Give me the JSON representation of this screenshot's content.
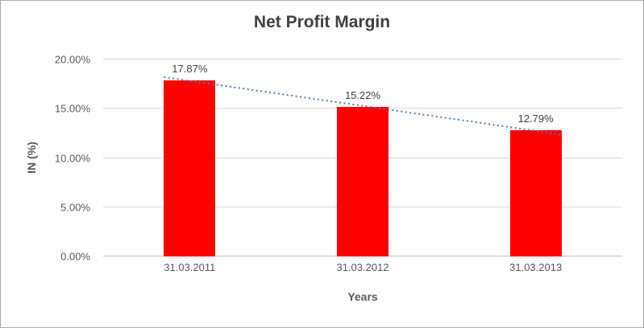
{
  "chart_data": {
    "type": "bar",
    "title": "Net Profit Margin",
    "xlabel": "Years",
    "ylabel": "IN (%)",
    "categories": [
      "31.03.2011",
      "31.03.2012",
      "31.03.2013"
    ],
    "values": [
      17.87,
      15.22,
      12.79
    ],
    "data_labels": [
      "17.87%",
      "15.22%",
      "12.79%"
    ],
    "y_ticks": [
      "0.00%",
      "5.00%",
      "10.00%",
      "15.00%",
      "20.00%"
    ],
    "ylim": [
      0,
      20
    ],
    "grid": "horizontal",
    "legend": "none",
    "bar_color": "#ff0000",
    "trendline": {
      "type": "linear",
      "style": "dotted",
      "color": "#4a7ebb"
    }
  }
}
